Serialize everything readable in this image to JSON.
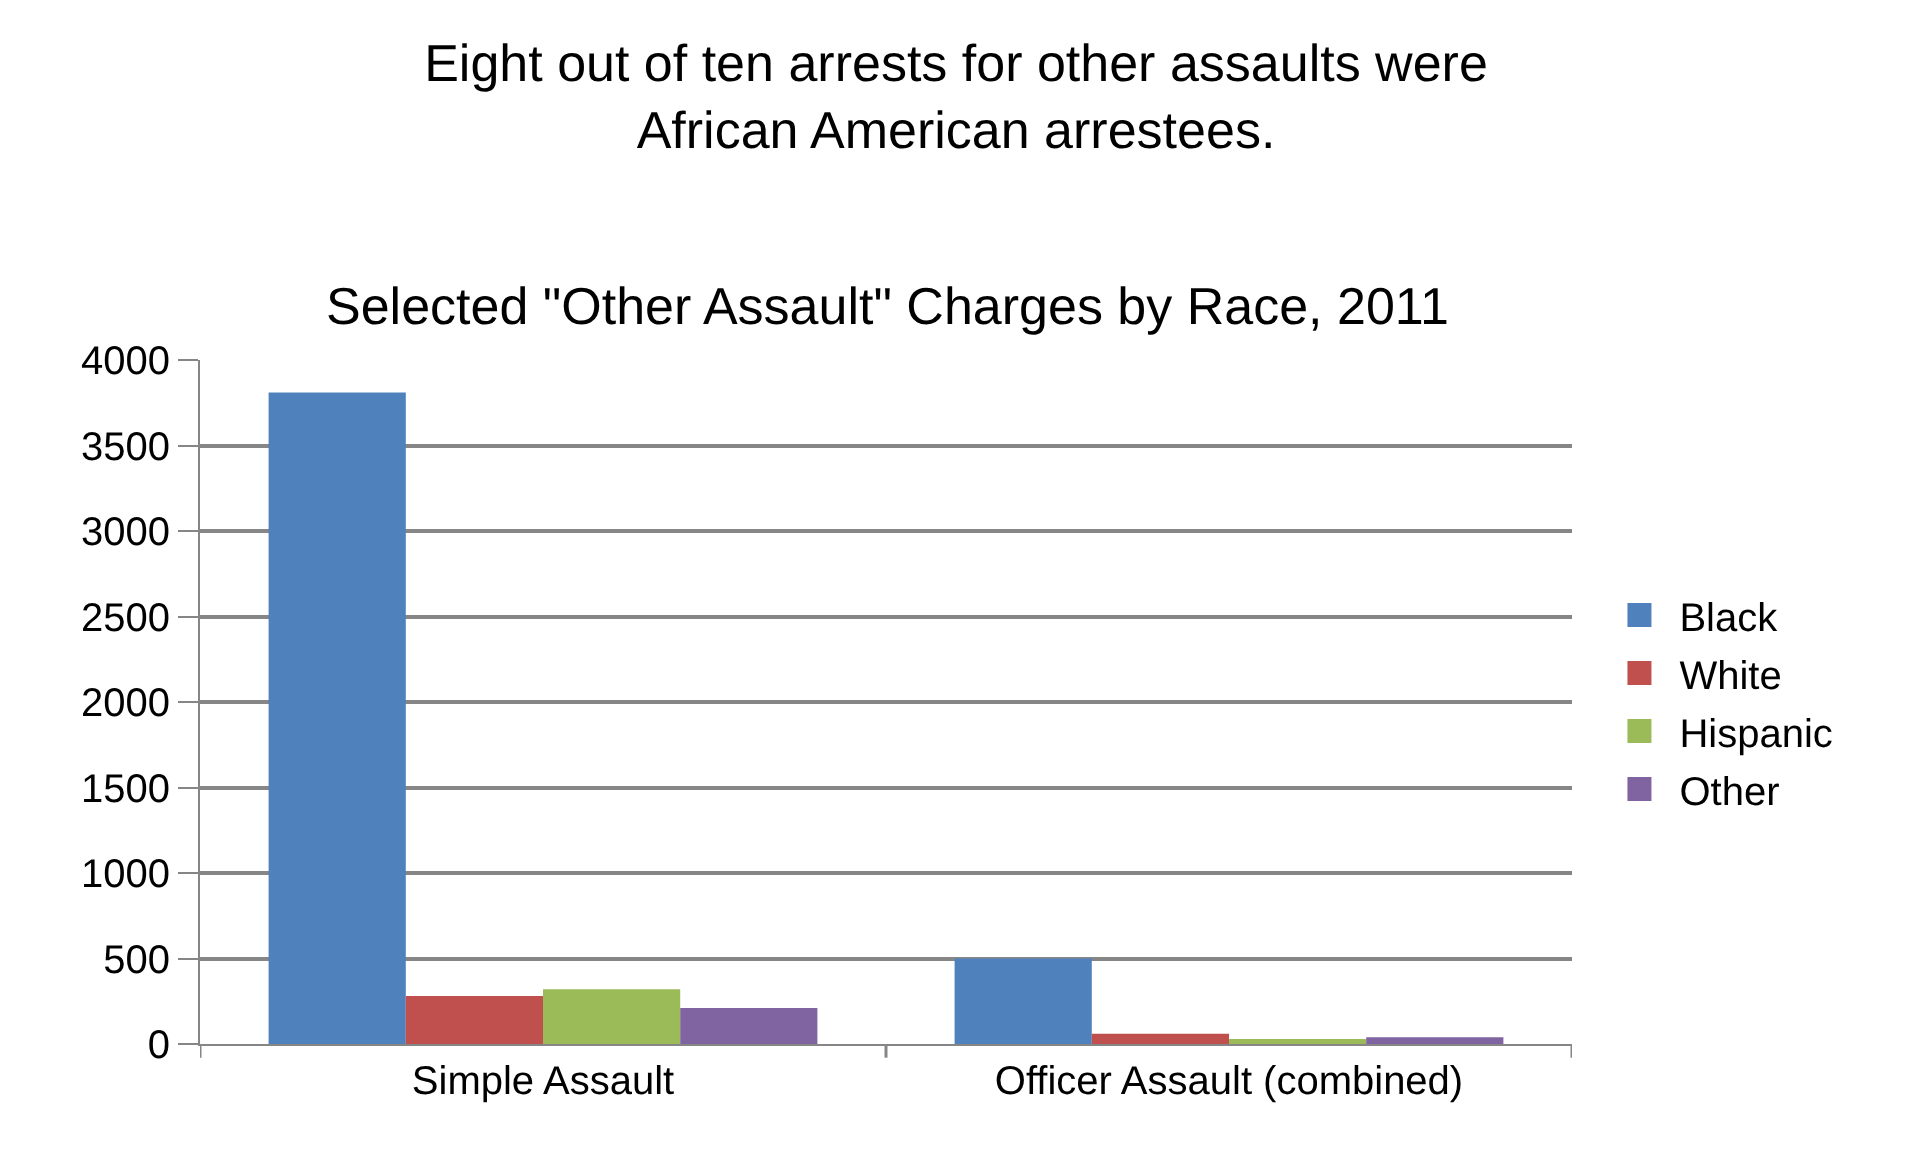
{
  "chart_data": {
    "type": "bar",
    "title": "Eight out of ten arrests for other assaults were\nAfrican American arrestees.",
    "subtitle": "Selected \"Other Assault\" Charges by Race, 2011",
    "categories": [
      "Simple Assault",
      "Officer Assault (combined)"
    ],
    "series": [
      {
        "name": "Black",
        "color": "#4f81bd",
        "values": [
          3810,
          500
        ]
      },
      {
        "name": "White",
        "color": "#c0504d",
        "values": [
          280,
          60
        ]
      },
      {
        "name": "Hispanic",
        "color": "#9bbb59",
        "values": [
          320,
          30
        ]
      },
      {
        "name": "Other",
        "color": "#8064a2",
        "values": [
          210,
          40
        ]
      }
    ],
    "ylim": [
      0,
      4000
    ],
    "yticks": [
      0,
      500,
      1000,
      1500,
      2000,
      2500,
      3000,
      3500,
      4000
    ],
    "grid": "y",
    "legend": "right"
  }
}
